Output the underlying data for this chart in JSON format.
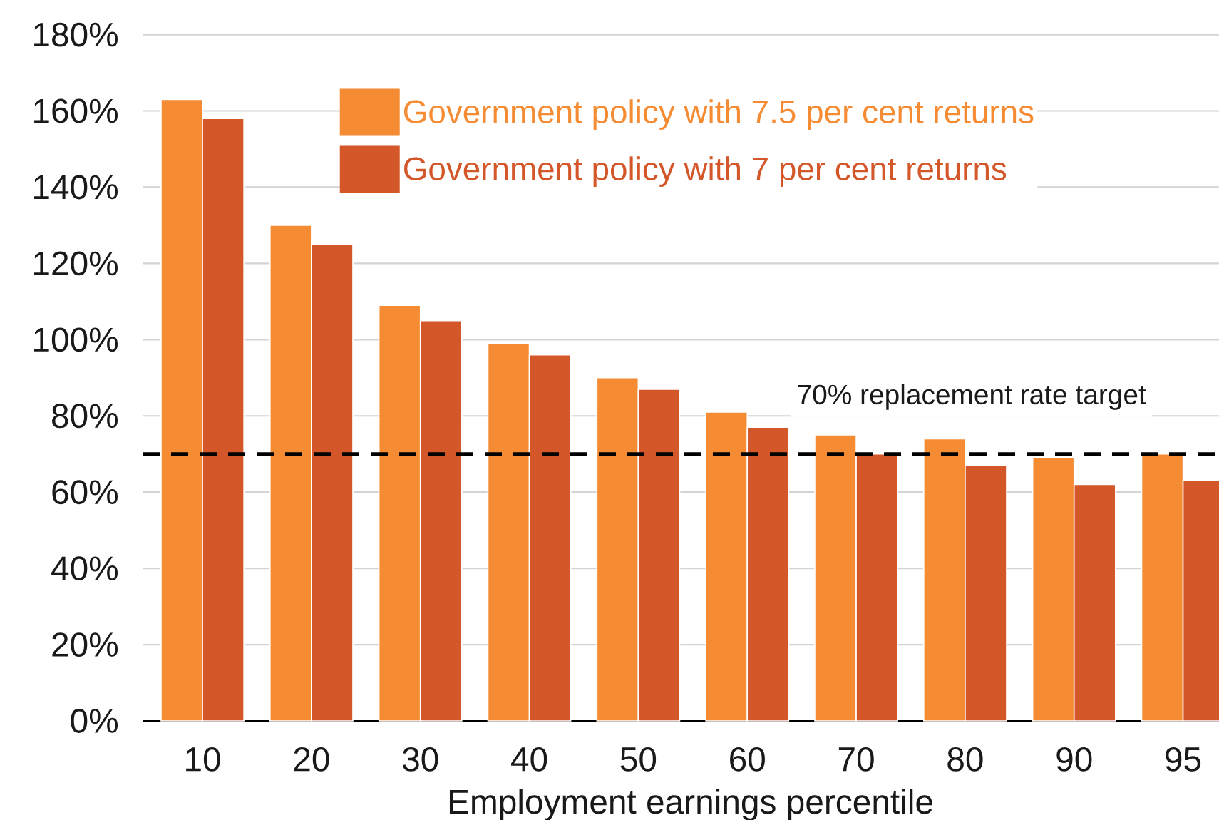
{
  "chart_data": {
    "type": "bar",
    "categories": [
      "10",
      "20",
      "30",
      "40",
      "50",
      "60",
      "70",
      "80",
      "90",
      "95"
    ],
    "xlabel": "Employment earnings percentile",
    "series": [
      {
        "name": "Government policy with 7.5 per cent returns",
        "color": "#f58b33",
        "values": [
          163,
          130,
          109,
          99,
          90,
          81,
          75,
          74,
          69,
          70
        ]
      },
      {
        "name": "Government policy with 7 per cent returns",
        "color": "#d4572a",
        "values": [
          158,
          125,
          105,
          96,
          87,
          77,
          70,
          67,
          62,
          63
        ]
      }
    ],
    "ylim": [
      0,
      180
    ],
    "yticks": [
      {
        "value": 0,
        "label": "0%"
      },
      {
        "value": 20,
        "label": "20%"
      },
      {
        "value": 40,
        "label": "40%"
      },
      {
        "value": 60,
        "label": "60%"
      },
      {
        "value": 80,
        "label": "80%"
      },
      {
        "value": 100,
        "label": "100%"
      },
      {
        "value": 120,
        "label": "120%"
      },
      {
        "value": 140,
        "label": "140%"
      },
      {
        "value": 160,
        "label": "160%"
      },
      {
        "value": 180,
        "label": "180%"
      }
    ],
    "grid": "y",
    "legend": "top",
    "ref_lines": [
      {
        "axis": "y",
        "value": 70,
        "label": "70% replacement rate target",
        "color": "#000000",
        "line_style": "dashed"
      }
    ]
  }
}
